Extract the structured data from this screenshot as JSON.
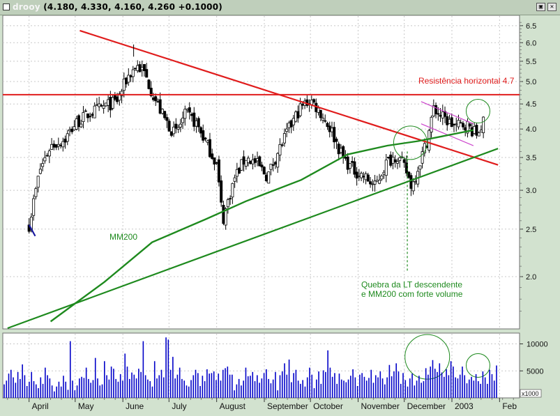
{
  "window": {
    "title_name": "drooy",
    "title_values": "(4.180, 4.330, 4.160, 4.260 +0.1000)",
    "restore_icon": "restore-icon",
    "close_icon": "close-icon"
  },
  "chart_data": [
    {
      "type": "candlestick",
      "scale": "log",
      "ylim": [
        1.6,
        6.8
      ],
      "y_ticks": [
        "6.5",
        "6.0",
        "5.5",
        "5.0",
        "4.5",
        "4.0",
        "3.5",
        "3.0",
        "2.5",
        "2.0"
      ],
      "x_labels": [
        "April",
        "May",
        "June",
        "July",
        "August",
        "September",
        "October",
        "November",
        "December",
        "2003",
        "Feb"
      ],
      "series": [
        {
          "name": "MM200",
          "type": "line",
          "color": "#1e8a1e",
          "x": [
            "2002-04-15",
            "2002-05-20",
            "2002-06-20",
            "2002-07-25",
            "2002-08-20",
            "2002-09-25",
            "2002-10-25",
            "2002-11-20",
            "2002-12-10",
            "2003-01-15"
          ],
          "y": [
            1.62,
            1.95,
            2.35,
            2.62,
            2.85,
            3.15,
            3.55,
            3.7,
            3.78,
            3.98
          ]
        }
      ],
      "price_path": {
        "x": [
          "2002-04-01",
          "2002-04-08",
          "2002-04-15",
          "2002-04-24",
          "2002-05-01",
          "2002-05-10",
          "2002-05-20",
          "2002-05-28",
          "2002-06-04",
          "2002-06-10",
          "2002-06-15",
          "2002-06-22",
          "2002-06-28",
          "2002-07-05",
          "2002-07-12",
          "2002-07-19",
          "2002-07-26",
          "2002-08-01",
          "2002-08-05",
          "2002-08-09",
          "2002-08-13",
          "2002-08-20",
          "2002-08-27",
          "2002-09-03",
          "2002-09-10",
          "2002-09-17",
          "2002-09-24",
          "2002-10-01",
          "2002-10-08",
          "2002-10-15",
          "2002-10-22",
          "2002-10-29",
          "2002-11-05",
          "2002-11-12",
          "2002-11-19",
          "2002-11-26",
          "2002-12-02",
          "2002-12-06",
          "2002-12-10",
          "2002-12-16",
          "2002-12-20",
          "2002-12-27",
          "2003-01-03",
          "2003-01-10",
          "2003-01-17",
          "2003-01-22"
        ],
        "y": [
          2.55,
          3.3,
          3.7,
          3.8,
          4.1,
          4.3,
          4.45,
          4.55,
          5.1,
          5.4,
          5.2,
          4.6,
          4.2,
          3.9,
          4.3,
          4.1,
          3.7,
          3.4,
          2.6,
          2.9,
          3.2,
          3.5,
          3.4,
          3.2,
          3.6,
          4.0,
          4.4,
          4.6,
          4.3,
          3.95,
          3.5,
          3.3,
          3.2,
          3.05,
          3.4,
          3.55,
          3.3,
          3.05,
          3.35,
          3.8,
          4.4,
          4.2,
          4.05,
          4.1,
          3.9,
          4.15
        ]
      },
      "lines": [
        {
          "name": "descending-trendline",
          "color": "#e01c1c",
          "from": [
            "2002-05-04",
            6.35
          ],
          "to": [
            "2003-01-31",
            3.38
          ]
        },
        {
          "name": "horizontal-resistance",
          "color": "#e01c1c",
          "value": 4.7
        },
        {
          "name": "ascending-trendline",
          "color": "#1e8a1e",
          "from": [
            "2002-03-18",
            1.57
          ],
          "to": [
            "2003-01-31",
            3.65
          ]
        },
        {
          "name": "flag-channel-top",
          "color": "#cc44cc",
          "from": [
            "2002-12-12",
            4.55
          ],
          "to": [
            "2003-01-15",
            4.1
          ]
        },
        {
          "name": "flag-channel-bottom",
          "color": "#cc44cc",
          "from": [
            "2002-12-12",
            4.1
          ],
          "to": [
            "2003-01-15",
            3.7
          ]
        },
        {
          "name": "early-blue-segment",
          "color": "#1a1aa0",
          "from": [
            "2002-04-01",
            2.55
          ],
          "to": [
            "2002-04-05",
            2.42
          ]
        }
      ],
      "annotations": [
        {
          "text": "Resistência horizontal 4.7",
          "color": "#e01c1c"
        },
        {
          "text": "MM200",
          "color": "#1e8a1e"
        },
        {
          "text": "Quebra da LT descendente",
          "color": "#1e8a1e"
        },
        {
          "text": "e MM200 com forte volume",
          "color": "#1e8a1e"
        }
      ]
    },
    {
      "type": "bar",
      "name": "volume",
      "color": "#0000c8",
      "scale_label": "x1000",
      "y_ticks": [
        "10000",
        "5000"
      ],
      "ylim": [
        0,
        12000
      ],
      "values": [
        2500,
        3200,
        4500,
        5200,
        3800,
        2800,
        4800,
        3500,
        6200,
        4200,
        2200,
        3000,
        4800,
        3100,
        2500,
        1800,
        3800,
        2600,
        5600,
        4200,
        3600,
        2300,
        1200,
        2100,
        3000,
        2100,
        4100,
        3000,
        1500,
        10500,
        3200,
        1400,
        2300,
        3600,
        3900,
        3700,
        5600,
        3500,
        2800,
        3300,
        7400,
        3600,
        2300,
        2500,
        6800,
        4200,
        3400,
        5800,
        5400,
        3500,
        3000,
        4400,
        3200,
        8200,
        5800,
        3500,
        4700,
        4300,
        3600,
        5400,
        4800,
        10500,
        4200,
        3400,
        3100,
        2100,
        6800,
        3600,
        4200,
        5200,
        3800,
        11200,
        10800,
        5200,
        7600,
        3600,
        4300,
        5600,
        3500,
        3200,
        2300,
        2100,
        3300,
        4200,
        5200,
        4600,
        2200,
        4100,
        3100,
        5300,
        4500,
        4600,
        4900,
        3300,
        4500,
        3200,
        5200,
        5500,
        5800,
        4300,
        4300,
        1400,
        2500,
        3500,
        2300,
        3200,
        5600,
        4000,
        4100,
        4800,
        3100,
        4200,
        2800,
        3600,
        4600,
        5300,
        3500,
        2700,
        3400,
        4800,
        1400,
        4200,
        4900,
        6400,
        4300,
        7100,
        2900,
        4600,
        5200,
        3200,
        2600,
        3300,
        2100,
        3800,
        5600,
        4300,
        1800,
        3400,
        4900,
        2600,
        5100,
        4800,
        8800,
        5600,
        3900,
        4600,
        2600,
        4500,
        3400,
        3200,
        2900,
        3400,
        4100,
        5300,
        3800,
        2200,
        4300,
        4600,
        3900,
        3200,
        3700,
        5200,
        2800,
        4200,
        3800,
        4900,
        3600,
        2500,
        3800,
        6100,
        4000,
        4900,
        6400,
        4900,
        2600,
        4600,
        3300,
        2100,
        3600,
        4500,
        2300,
        3200,
        4100,
        2800,
        3100,
        5500,
        4300,
        5800,
        7000,
        5400,
        4800,
        6400,
        4700,
        3900,
        5300,
        4200,
        6800,
        5800,
        3800,
        3600,
        4300,
        5800,
        4200,
        2700,
        3400,
        3900,
        3200,
        4400,
        3100,
        2600,
        4900,
        3800,
        2600,
        5200,
        4400,
        3200,
        6000
      ]
    }
  ]
}
